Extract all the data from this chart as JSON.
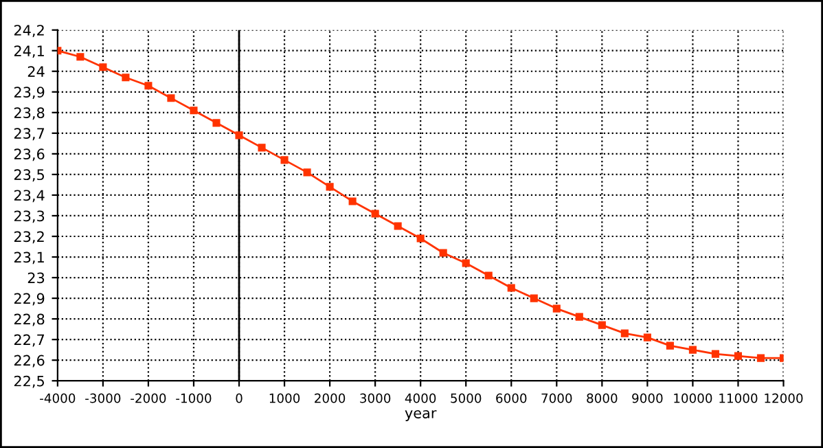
{
  "chart_data": {
    "type": "line",
    "xlabel": "year",
    "x": [
      -4000,
      -3500,
      -3000,
      -2500,
      -2000,
      -1500,
      -1000,
      -500,
      0,
      500,
      1000,
      1500,
      2000,
      2500,
      3000,
      3500,
      4000,
      4500,
      5000,
      5500,
      6000,
      6500,
      7000,
      7500,
      8000,
      8500,
      9000,
      9500,
      10000,
      10500,
      11000,
      11500,
      12000
    ],
    "series": [
      {
        "color": "#ff3300",
        "values": [
          24.1,
          24.07,
          24.02,
          23.97,
          23.93,
          23.87,
          23.81,
          23.75,
          23.69,
          23.63,
          23.57,
          23.51,
          23.44,
          23.37,
          23.31,
          23.25,
          23.19,
          23.12,
          23.07,
          23.01,
          22.95,
          22.9,
          22.85,
          22.81,
          22.77,
          22.73,
          22.71,
          22.67,
          22.65,
          22.63,
          22.62,
          22.61,
          22.61
        ]
      }
    ],
    "xlim": [
      -4000,
      12000
    ],
    "xticks": [
      -4000,
      -3000,
      -2000,
      -1000,
      0,
      1000,
      2000,
      3000,
      4000,
      5000,
      6000,
      7000,
      8000,
      9000,
      10000,
      11000,
      12000
    ],
    "ylim": [
      22.5,
      24.2
    ],
    "yticks": [
      {
        "value": 22.5,
        "label": "22,5"
      },
      {
        "value": 22.6,
        "label": "22,6"
      },
      {
        "value": 22.7,
        "label": "22,7"
      },
      {
        "value": 22.8,
        "label": "22,8"
      },
      {
        "value": 22.9,
        "label": "22,9"
      },
      {
        "value": 23,
        "label": "23"
      },
      {
        "value": 23.1,
        "label": "23,1"
      },
      {
        "value": 23.2,
        "label": "23,2"
      },
      {
        "value": 23.3,
        "label": "23,3"
      },
      {
        "value": 23.4,
        "label": "23,4"
      },
      {
        "value": 23.5,
        "label": "23,5"
      },
      {
        "value": 23.6,
        "label": "23,6"
      },
      {
        "value": 23.7,
        "label": "23,7"
      },
      {
        "value": 23.8,
        "label": "23,8"
      },
      {
        "value": 23.9,
        "label": "23,9"
      },
      {
        "value": 24,
        "label": "24"
      },
      {
        "value": 24.1,
        "label": "24,1"
      },
      {
        "value": 24.2,
        "label": "24,2"
      }
    ],
    "ref_lines": [
      {
        "axis": "x",
        "value": 0,
        "color": "#000000",
        "line_style": "solid"
      }
    ],
    "grid": true,
    "marker": "square",
    "line_style": "solid"
  }
}
